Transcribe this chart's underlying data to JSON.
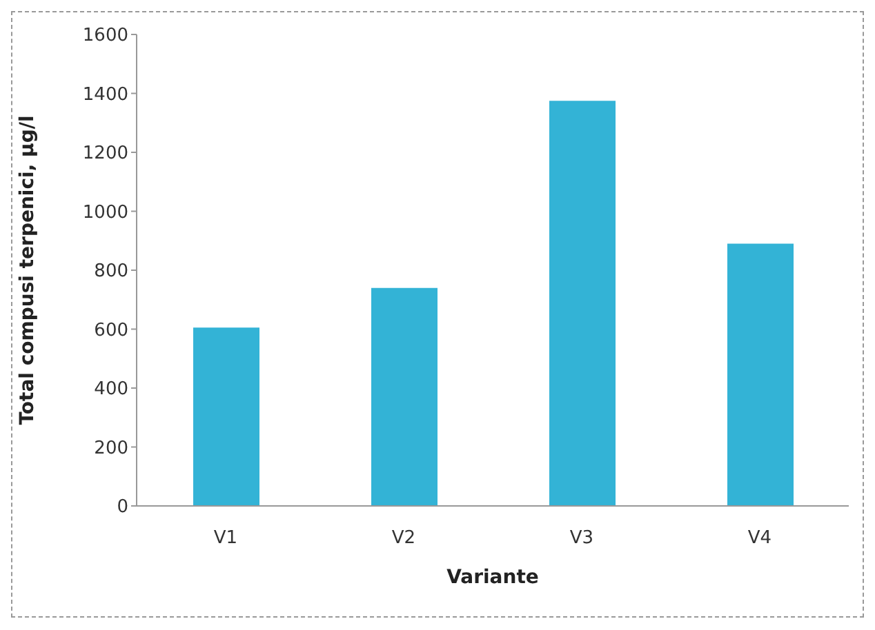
{
  "chart_data": {
    "type": "bar",
    "xlabel": "Variante",
    "ylabel": "Total compusi terpenici, µg/l",
    "categories": [
      "V1",
      "V2",
      "V3",
      "V4"
    ],
    "values": [
      605,
      740,
      1375,
      890
    ],
    "color": "#33b3d6",
    "ylim": [
      0,
      1600
    ],
    "yticks": [
      0,
      200,
      400,
      600,
      800,
      1000,
      1200,
      1400,
      1600
    ],
    "grid": false
  }
}
